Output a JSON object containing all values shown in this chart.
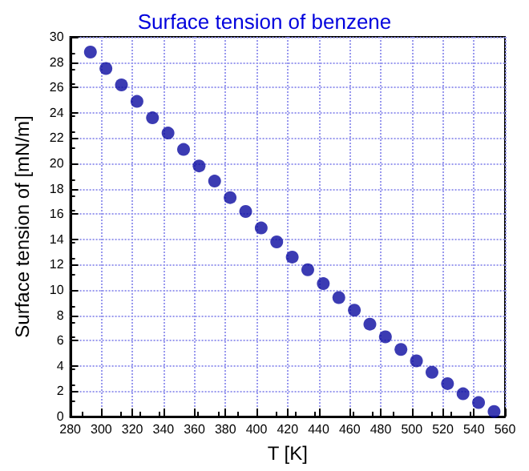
{
  "chart_data": {
    "type": "scatter",
    "title": "Surface tension of benzene",
    "xlabel": "T [K]",
    "ylabel": "Surface tension of [mN/m]",
    "x": [
      293,
      303,
      313,
      323,
      333,
      343,
      353,
      363,
      373,
      383,
      393,
      403,
      413,
      423,
      433,
      443,
      453,
      463,
      473,
      483,
      493,
      503,
      513,
      523,
      533,
      543,
      553
    ],
    "series": [
      {
        "color": "#0a0aa0",
        "values": [
          28.8,
          27.5,
          26.2,
          24.9,
          23.6,
          22.4,
          21.1,
          19.8,
          18.6,
          17.3,
          16.2,
          14.9,
          13.8,
          12.6,
          11.6,
          10.5,
          9.4,
          8.4,
          7.3,
          6.3,
          5.3,
          4.4,
          3.5,
          2.6,
          1.8,
          1.1,
          0.4
        ]
      }
    ],
    "xlim": [
      280,
      560
    ],
    "xticks": [
      280,
      300,
      320,
      340,
      360,
      380,
      400,
      420,
      440,
      460,
      480,
      500,
      520,
      540,
      560
    ],
    "ylim": [
      0,
      30
    ],
    "yticks": [
      0,
      2,
      4,
      6,
      8,
      10,
      12,
      14,
      16,
      18,
      20,
      22,
      24,
      26,
      28,
      30
    ],
    "grid": true,
    "marker": "circle"
  }
}
